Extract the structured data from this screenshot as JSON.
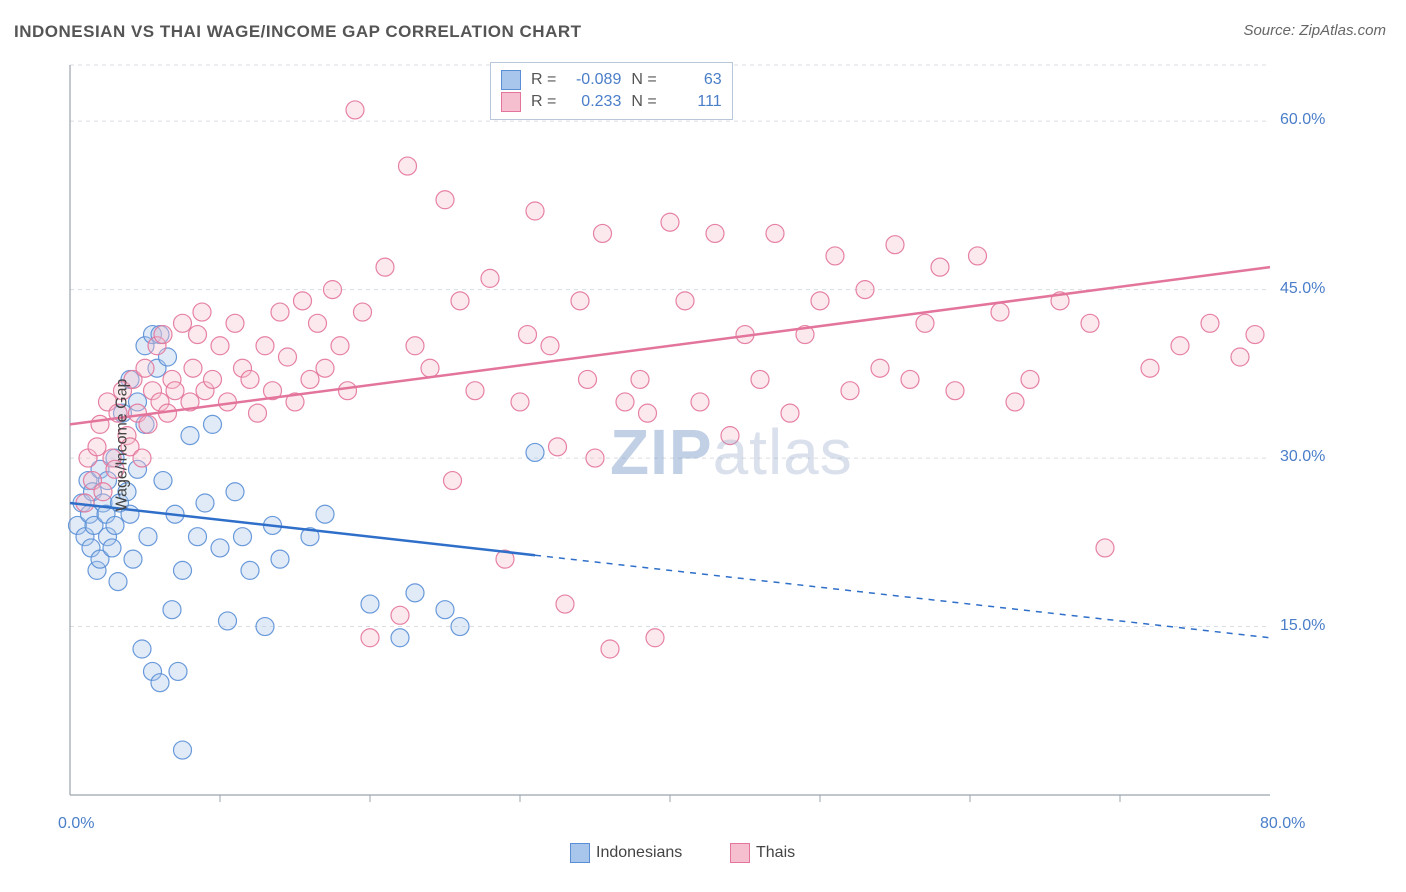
{
  "title": "INDONESIAN VS THAI WAGE/INCOME GAP CORRELATION CHART",
  "source_label": "Source: ZipAtlas.com",
  "ylabel": "Wage/Income Gap",
  "watermark_a": "ZIP",
  "watermark_b": "atlas",
  "chart": {
    "type": "scatter",
    "background_color": "#ffffff",
    "axis_color": "#9aa3ad",
    "grid_color": "#d8dde3",
    "tick_label_color": "#4a7ec9",
    "xlim": [
      0,
      80
    ],
    "ylim": [
      0,
      65
    ],
    "x_ticks": [
      0,
      80
    ],
    "x_tick_labels": [
      "0.0%",
      "80.0%"
    ],
    "x_minor_ticks": [
      10,
      20,
      30,
      40,
      50,
      60,
      70
    ],
    "y_ticks": [
      15,
      30,
      45,
      60
    ],
    "y_tick_labels": [
      "15.0%",
      "30.0%",
      "45.0%",
      "60.0%"
    ],
    "marker_radius": 9,
    "marker_style": "circle",
    "marker_fill_opacity": 0.35,
    "marker_stroke_opacity": 0.9,
    "marker_stroke_width": 1.2,
    "line_width": 2.5,
    "dash_pattern": "6 6",
    "title_fontsize": 17,
    "label_fontsize": 16,
    "tick_fontsize": 16
  },
  "legend_box": {
    "rows": [
      {
        "swatch_fill": "#a8c6ec",
        "swatch_stroke": "#5a8fd6",
        "r_label": "R =",
        "r_val": "-0.089",
        "n_label": "N =",
        "n_val": "63"
      },
      {
        "swatch_fill": "#f5bfcf",
        "swatch_stroke": "#e3749b",
        "r_label": "R =",
        "r_val": "0.233",
        "n_label": "N =",
        "n_val": "111"
      }
    ]
  },
  "bottom_legend": [
    {
      "swatch_fill": "#a8c6ec",
      "swatch_stroke": "#5a8fd6",
      "label": "Indonesians"
    },
    {
      "swatch_fill": "#f5bfcf",
      "swatch_stroke": "#e3749b",
      "label": "Thais"
    }
  ],
  "series": [
    {
      "name": "Indonesians",
      "color_fill": "#a8c6ec",
      "color_stroke": "#5a8fd6",
      "trend": {
        "color": "#2f6fc9",
        "y_at_x0": 26.0,
        "y_at_x80": 14.0,
        "solid_until_x": 31,
        "dashed_after": true
      },
      "points": [
        [
          0.5,
          24
        ],
        [
          0.8,
          26
        ],
        [
          1.0,
          23
        ],
        [
          1.2,
          28
        ],
        [
          1.3,
          25
        ],
        [
          1.4,
          22
        ],
        [
          1.5,
          27
        ],
        [
          1.6,
          24
        ],
        [
          1.8,
          20
        ],
        [
          2.0,
          29
        ],
        [
          2.0,
          21
        ],
        [
          2.2,
          26
        ],
        [
          2.4,
          25
        ],
        [
          2.5,
          23
        ],
        [
          2.5,
          28
        ],
        [
          2.8,
          22
        ],
        [
          3.0,
          30
        ],
        [
          3.0,
          24
        ],
        [
          3.2,
          19
        ],
        [
          3.3,
          26
        ],
        [
          3.5,
          34
        ],
        [
          3.8,
          27
        ],
        [
          4.0,
          25
        ],
        [
          4.0,
          37
        ],
        [
          4.2,
          21
        ],
        [
          4.5,
          35
        ],
        [
          4.5,
          29
        ],
        [
          4.8,
          13
        ],
        [
          5.0,
          40
        ],
        [
          5.0,
          33
        ],
        [
          5.2,
          23
        ],
        [
          5.5,
          41
        ],
        [
          5.5,
          11
        ],
        [
          5.8,
          38
        ],
        [
          6.0,
          41
        ],
        [
          6.0,
          10
        ],
        [
          6.2,
          28
        ],
        [
          6.5,
          39
        ],
        [
          6.8,
          16.5
        ],
        [
          7.0,
          25
        ],
        [
          7.2,
          11
        ],
        [
          7.5,
          20
        ],
        [
          8.0,
          32
        ],
        [
          8.5,
          23
        ],
        [
          9.0,
          26
        ],
        [
          9.5,
          33
        ],
        [
          10.0,
          22
        ],
        [
          10.5,
          15.5
        ],
        [
          11.0,
          27
        ],
        [
          11.5,
          23
        ],
        [
          12.0,
          20
        ],
        [
          13.0,
          15
        ],
        [
          13.5,
          24
        ],
        [
          14.0,
          21
        ],
        [
          16.0,
          23
        ],
        [
          17.0,
          25
        ],
        [
          20.0,
          17
        ],
        [
          22.0,
          14
        ],
        [
          23.0,
          18
        ],
        [
          25.0,
          16.5
        ],
        [
          26.0,
          15
        ],
        [
          31.0,
          30.5
        ],
        [
          7.5,
          4
        ]
      ]
    },
    {
      "name": "Thais",
      "color_fill": "#f5bfcf",
      "color_stroke": "#e3749b",
      "trend": {
        "color": "#e3749b",
        "y_at_x0": 33.0,
        "y_at_x80": 47.0,
        "solid_until_x": 80,
        "dashed_after": false
      },
      "points": [
        [
          1.0,
          26
        ],
        [
          1.2,
          30
        ],
        [
          1.5,
          28
        ],
        [
          1.8,
          31
        ],
        [
          2.0,
          33
        ],
        [
          2.2,
          27
        ],
        [
          2.5,
          35
        ],
        [
          2.8,
          30
        ],
        [
          3.0,
          29
        ],
        [
          3.2,
          34
        ],
        [
          3.5,
          36
        ],
        [
          3.8,
          32
        ],
        [
          4.0,
          31
        ],
        [
          4.2,
          37
        ],
        [
          4.5,
          34
        ],
        [
          4.8,
          30
        ],
        [
          5.0,
          38
        ],
        [
          5.2,
          33
        ],
        [
          5.5,
          36
        ],
        [
          5.8,
          40
        ],
        [
          6.0,
          35
        ],
        [
          6.2,
          41
        ],
        [
          6.5,
          34
        ],
        [
          6.8,
          37
        ],
        [
          7.0,
          36
        ],
        [
          7.5,
          42
        ],
        [
          8.0,
          35
        ],
        [
          8.2,
          38
        ],
        [
          8.5,
          41
        ],
        [
          8.8,
          43
        ],
        [
          9.0,
          36
        ],
        [
          9.5,
          37
        ],
        [
          10.0,
          40
        ],
        [
          10.5,
          35
        ],
        [
          11.0,
          42
        ],
        [
          11.5,
          38
        ],
        [
          12.0,
          37
        ],
        [
          12.5,
          34
        ],
        [
          13.0,
          40
        ],
        [
          13.5,
          36
        ],
        [
          14.0,
          43
        ],
        [
          14.5,
          39
        ],
        [
          15.0,
          35
        ],
        [
          15.5,
          44
        ],
        [
          16.0,
          37
        ],
        [
          16.5,
          42
        ],
        [
          17.0,
          38
        ],
        [
          17.5,
          45
        ],
        [
          18.0,
          40
        ],
        [
          18.5,
          36
        ],
        [
          19.0,
          61
        ],
        [
          19.5,
          43
        ],
        [
          20.0,
          14
        ],
        [
          21.0,
          47
        ],
        [
          22.0,
          16
        ],
        [
          22.5,
          56
        ],
        [
          23.0,
          40
        ],
        [
          24.0,
          38
        ],
        [
          25.0,
          53
        ],
        [
          25.5,
          28
        ],
        [
          26.0,
          44
        ],
        [
          27.0,
          36
        ],
        [
          28.0,
          46
        ],
        [
          29.0,
          21
        ],
        [
          30.0,
          35
        ],
        [
          30.5,
          41
        ],
        [
          31.0,
          52
        ],
        [
          32.0,
          40
        ],
        [
          32.5,
          31
        ],
        [
          33.0,
          17
        ],
        [
          34.0,
          44
        ],
        [
          34.5,
          37
        ],
        [
          35.0,
          30
        ],
        [
          35.5,
          50
        ],
        [
          36.0,
          13
        ],
        [
          37.0,
          35
        ],
        [
          38.0,
          37
        ],
        [
          38.5,
          34
        ],
        [
          39.0,
          14
        ],
        [
          40.0,
          51
        ],
        [
          41.0,
          44
        ],
        [
          42.0,
          35
        ],
        [
          43.0,
          50
        ],
        [
          44.0,
          32
        ],
        [
          45.0,
          41
        ],
        [
          46.0,
          37
        ],
        [
          47.0,
          50
        ],
        [
          48.0,
          34
        ],
        [
          49.0,
          41
        ],
        [
          50.0,
          44
        ],
        [
          51.0,
          48
        ],
        [
          52.0,
          36
        ],
        [
          53.0,
          45
        ],
        [
          54.0,
          38
        ],
        [
          55.0,
          49
        ],
        [
          56.0,
          37
        ],
        [
          57.0,
          42
        ],
        [
          58.0,
          47
        ],
        [
          59.0,
          36
        ],
        [
          60.5,
          48
        ],
        [
          62.0,
          43
        ],
        [
          63.0,
          35
        ],
        [
          64.0,
          37
        ],
        [
          66.0,
          44
        ],
        [
          68.0,
          42
        ],
        [
          69.0,
          22
        ],
        [
          72.0,
          38
        ],
        [
          74.0,
          40
        ],
        [
          76.0,
          42
        ],
        [
          78.0,
          39
        ],
        [
          79.0,
          41
        ]
      ]
    }
  ]
}
